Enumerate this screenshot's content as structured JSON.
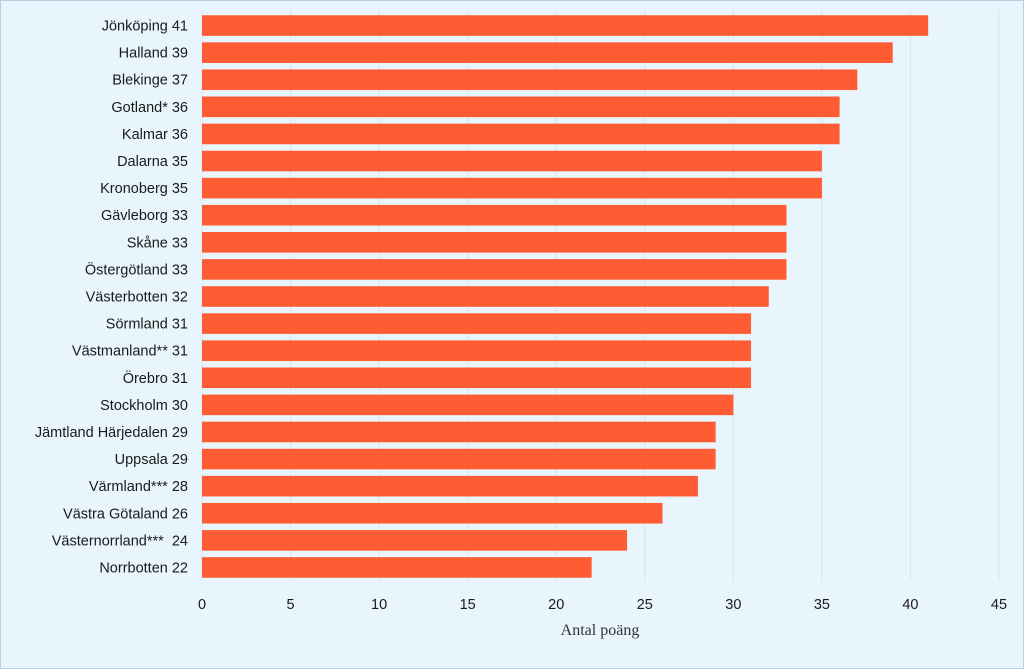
{
  "chart_data": {
    "type": "bar",
    "orientation": "horizontal",
    "categories": [
      "Jönköping 41",
      "Halland 39",
      "Blekinge 37",
      "Gotland* 36",
      "Kalmar 36",
      "Dalarna 35",
      "Kronoberg 35",
      "Gävleborg 33",
      "Skåne 33",
      "Östergötland 33",
      "Västerbotten 32",
      "Sörmland 31",
      "Västmanland** 31",
      "Örebro 31",
      "Stockholm 30",
      "Jämtland Härjedalen 29",
      "Uppsala 29",
      "Värmland*** 28",
      "Västra Götaland 26",
      "Västernorrland***  24",
      "Norrbotten 22"
    ],
    "values": [
      41,
      39,
      37,
      36,
      36,
      35,
      35,
      33,
      33,
      33,
      32,
      31,
      31,
      31,
      30,
      29,
      29,
      28,
      26,
      24,
      22
    ],
    "xlabel": "Antal poäng",
    "ylabel": "",
    "title": "",
    "xlim": [
      0,
      45
    ],
    "xticks": [
      "0",
      "5",
      "10",
      "15",
      "20",
      "25",
      "30",
      "35",
      "40",
      "45"
    ],
    "grid": "vertical",
    "legend": "none",
    "colors": {
      "bar": "#ff5c33",
      "background": "#e9f5fd",
      "grid": "#d9e4ec",
      "text": "#1a1a1a"
    }
  }
}
